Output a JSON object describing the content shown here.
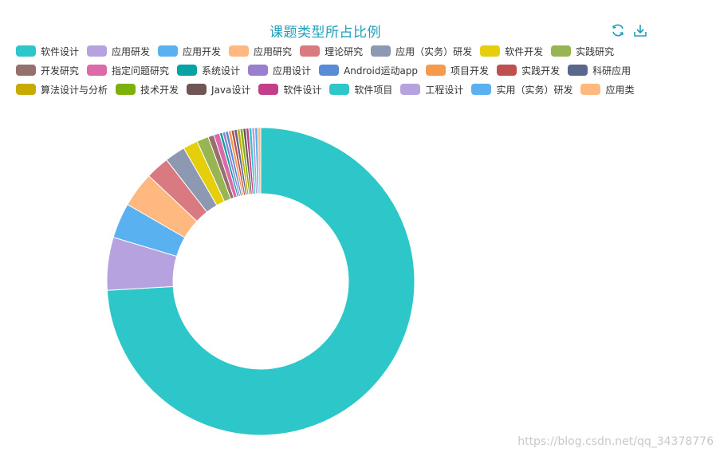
{
  "watermark": "https://blog.csdn.net/qq_34378776",
  "toolbox": {
    "refresh_icon": "refresh-icon",
    "download_icon": "download-icon",
    "color": "#1e9fb9"
  },
  "chart_data": {
    "type": "pie",
    "subtype": "donut",
    "title": "课题类型所占比例",
    "legend_position": "top",
    "categories": [
      "软件设计",
      "应用研发",
      "应用开发",
      "应用研究",
      "理论研究",
      "应用（实务）研发",
      "软件开发",
      "实践研究",
      "开发研究",
      "指定问题研究",
      "系统设计",
      "应用设计",
      "Android运动app",
      "项目开发",
      "实践开发",
      "科研应用",
      "算法设计与分析",
      "技术开发",
      "Java设计",
      "软件设计 ",
      "软件项目",
      "工程设计",
      "实用（实务）研发",
      "应用类"
    ],
    "values": [
      240,
      18,
      12,
      12,
      8,
      7,
      5,
      4,
      2,
      2,
      1,
      1,
      1,
      1,
      1,
      1,
      1,
      1,
      1,
      1,
      1,
      1,
      1,
      1
    ],
    "colors": [
      "#2ec7c9",
      "#b6a2de",
      "#5ab1ef",
      "#ffb980",
      "#d87a80",
      "#8d98b3",
      "#e5cf0d",
      "#97b552",
      "#95706d",
      "#dc69aa",
      "#07a2a4",
      "#9a7fd1",
      "#588dd5",
      "#f5994e",
      "#c05050",
      "#59678c",
      "#c9ab00",
      "#7eb00a",
      "#6f5553",
      "#c14089",
      "#2ec7c9",
      "#b6a2de",
      "#5ab1ef",
      "#ffb980"
    ]
  }
}
